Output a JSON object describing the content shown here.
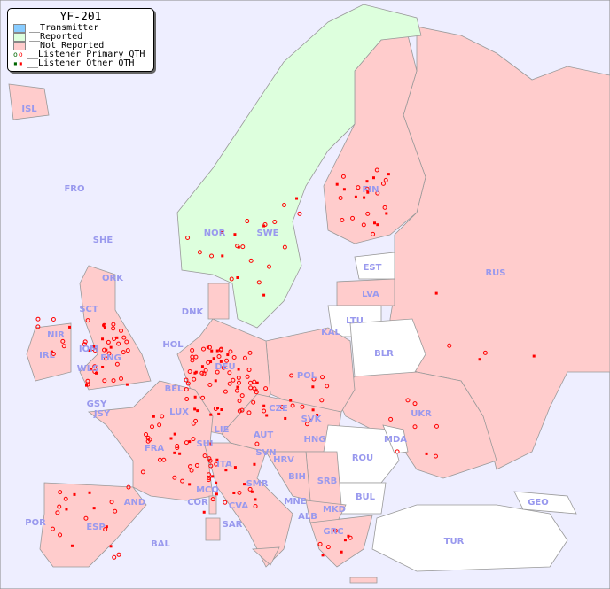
{
  "legend": {
    "title": "YF-201",
    "items": [
      {
        "label": "__Transmitter",
        "color": "#88ccff"
      },
      {
        "label": "__Reported",
        "color": "#ddffdd"
      },
      {
        "label": "__Not Reported",
        "color": "#ffcccc"
      },
      {
        "label": "__Listener Primary QTH",
        "marker": "circle"
      },
      {
        "label": "__Listener Other QTH",
        "marker": "square"
      }
    ]
  },
  "colors": {
    "background": "#eeeeff",
    "reported": "#ddffdd",
    "not_reported": "#ffcccc",
    "none": "#ffffff",
    "marker": "#ff0000",
    "label": "#9999ee"
  },
  "countries": [
    "ISL",
    "FRO",
    "SHE",
    "ORK",
    "NOR",
    "SWE",
    "FIN",
    "RUS",
    "EST",
    "LVA",
    "LTU",
    "BLR",
    "KAL",
    "DNK",
    "HOL",
    "DEU",
    "POL",
    "UKR",
    "NIR",
    "SCT",
    "IOM",
    "IRL",
    "WLS",
    "ENG",
    "BEL",
    "GSY",
    "JSY",
    "LUX",
    "CZE",
    "SVK",
    "MDA",
    "FRA",
    "SUI",
    "LIE",
    "AUT",
    "HNG",
    "ROU",
    "SVN",
    "HRV",
    "ITA",
    "BIH",
    "SRB",
    "MCO",
    "SMR",
    "BUL",
    "GEO",
    "AND",
    "COR",
    "MNE",
    "CVA",
    "ALB",
    "MKD",
    "POR",
    "ESP",
    "SAR",
    "GRC",
    "TUR",
    "BAL"
  ]
}
